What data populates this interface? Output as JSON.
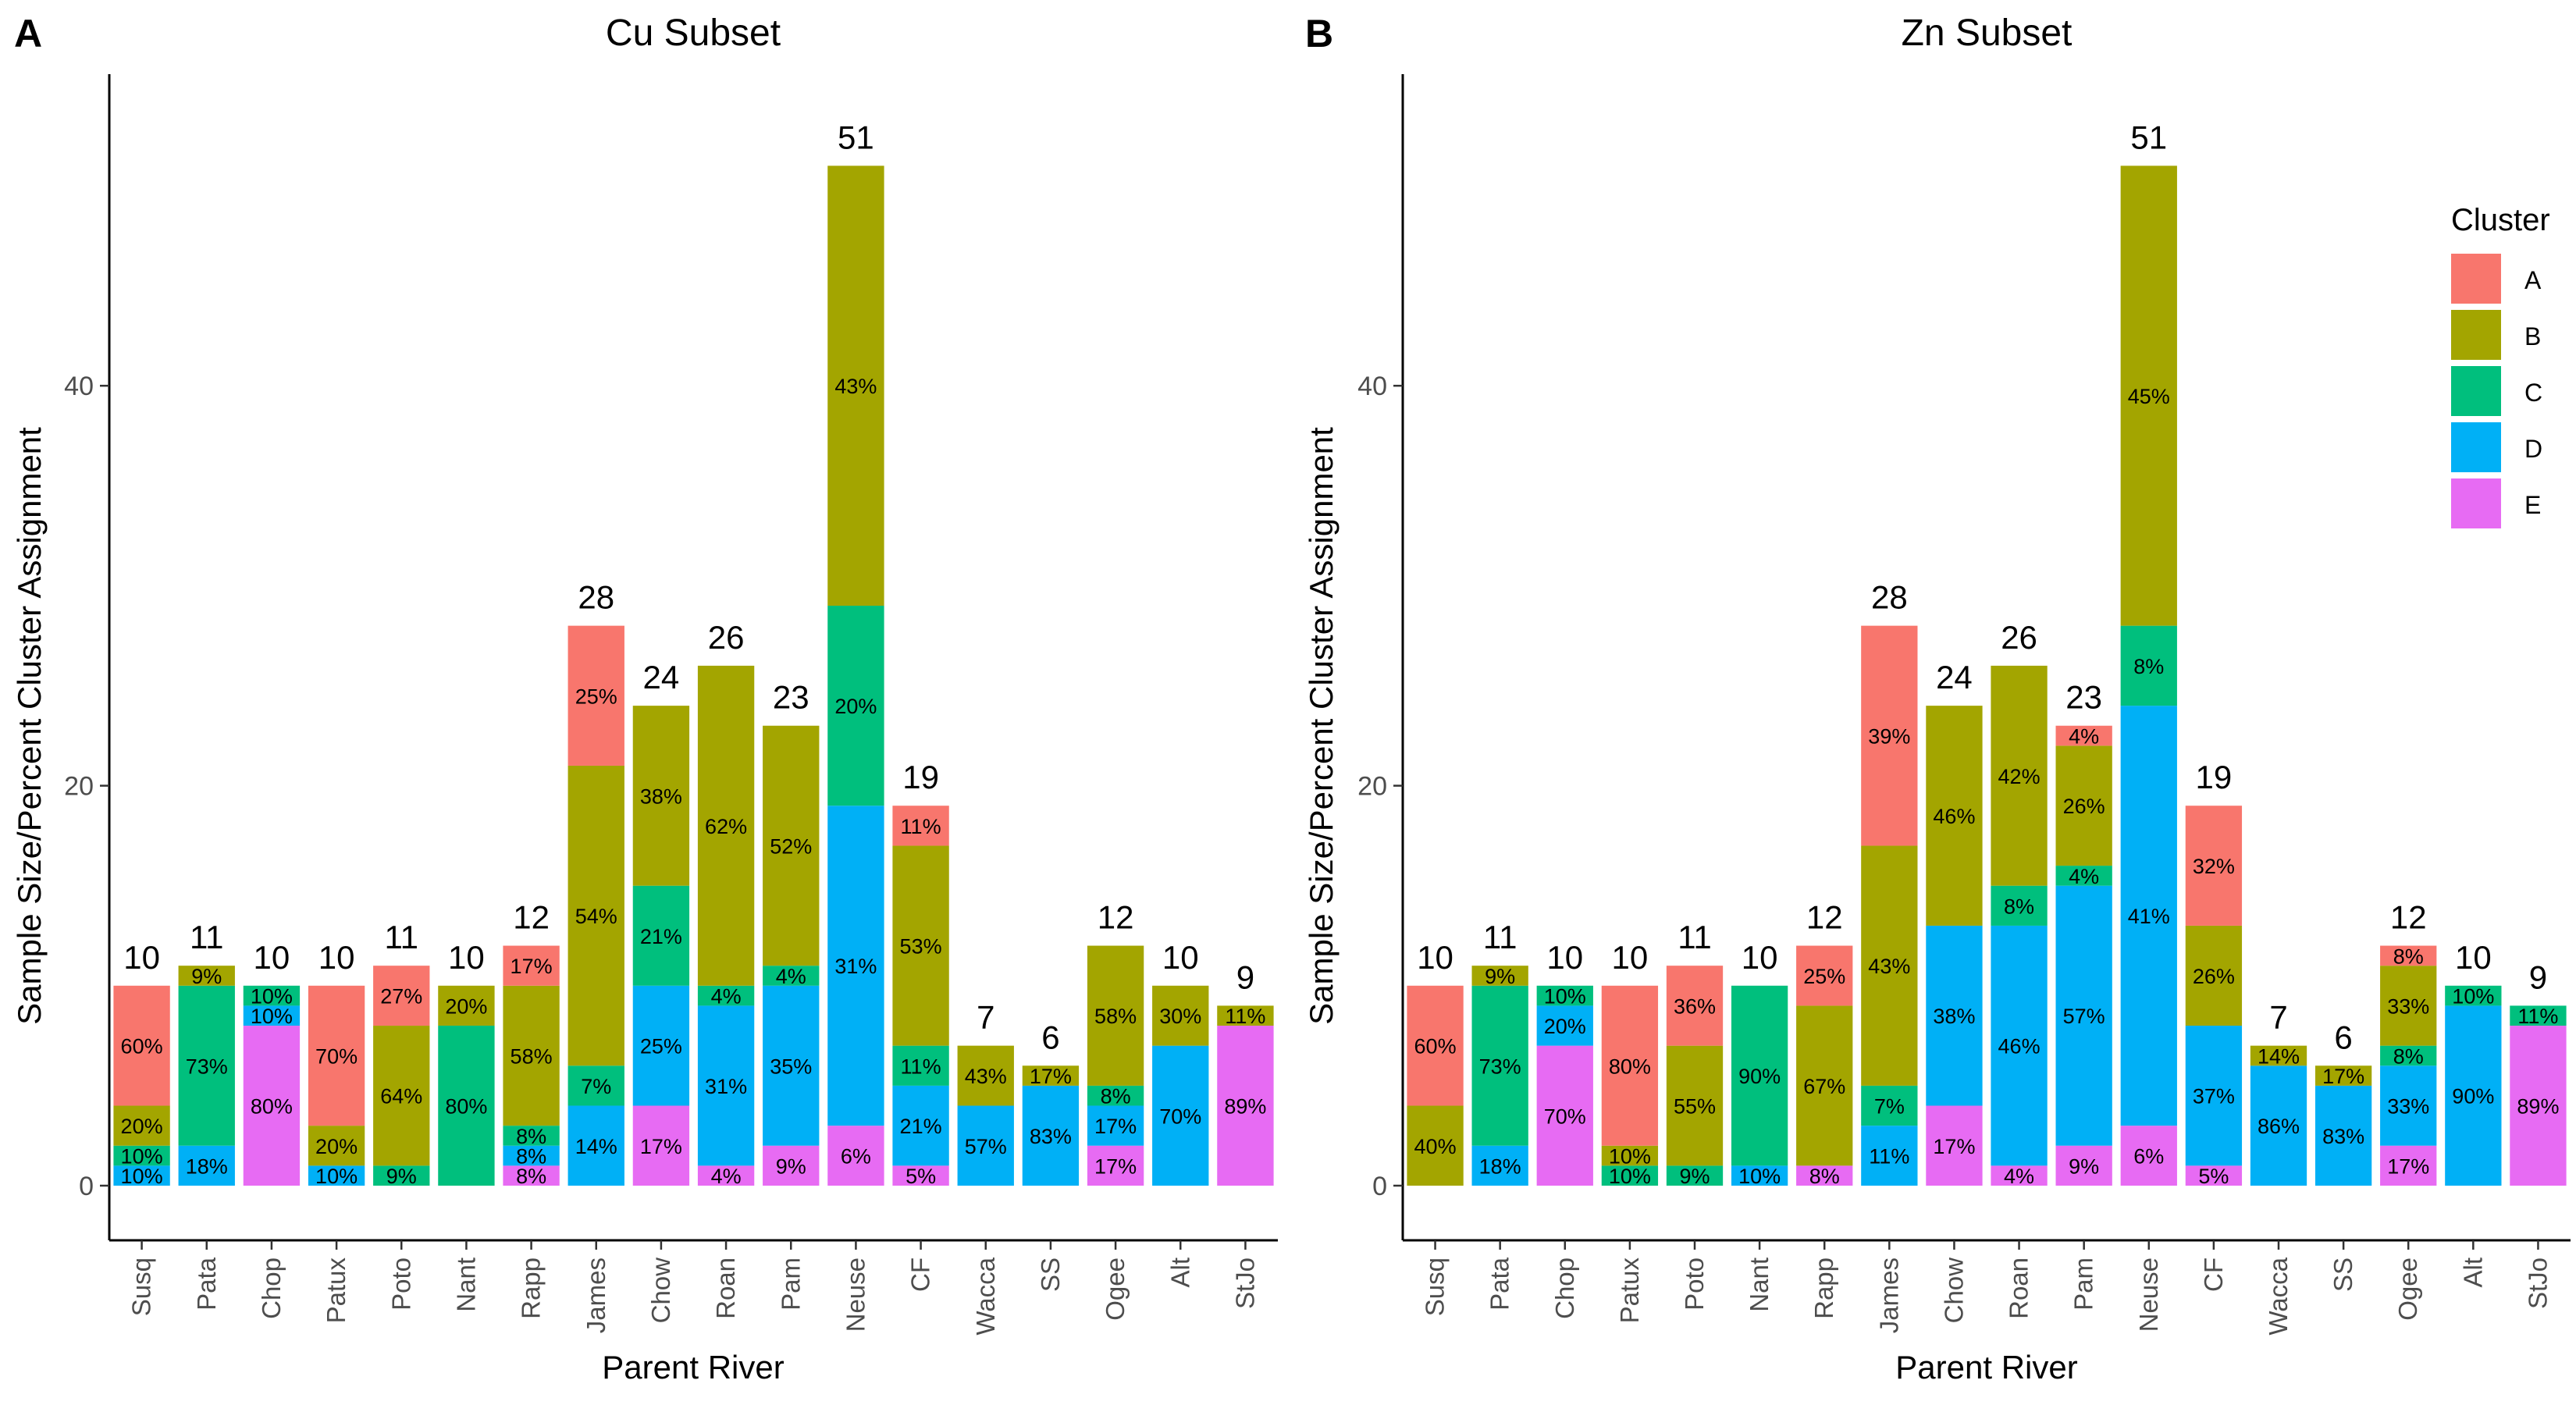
{
  "legend": {
    "title": "Cluster",
    "items": [
      {
        "label": "A",
        "color": "#F8766D"
      },
      {
        "label": "B",
        "color": "#A3A500"
      },
      {
        "label": "C",
        "color": "#00BF7D"
      },
      {
        "label": "D",
        "color": "#00B0F6"
      },
      {
        "label": "E",
        "color": "#E76BF3"
      }
    ]
  },
  "chart_data": [
    {
      "panel": "A",
      "type": "bar",
      "stacked": true,
      "title": "Cu Subset",
      "xlabel": "Parent River",
      "ylabel": "Sample Size/Percent Cluster Assignment",
      "ylim": [
        0,
        55
      ],
      "yticks": [
        0,
        20,
        40
      ],
      "categories": [
        "Susq",
        "Pata",
        "Chop",
        "Patux",
        "Poto",
        "Nant",
        "Rapp",
        "James",
        "Chow",
        "Roan",
        "Pam",
        "Neuse",
        "CF",
        "Wacca",
        "SS",
        "Ogee",
        "Alt",
        "StJo"
      ],
      "totals": [
        10,
        11,
        10,
        10,
        11,
        10,
        12,
        28,
        24,
        26,
        23,
        51,
        19,
        7,
        6,
        12,
        10,
        9
      ],
      "series": [
        {
          "name": "E",
          "values": [
            0,
            0,
            8,
            0,
            0,
            0,
            1,
            0,
            4,
            1,
            2,
            3,
            1,
            0,
            0,
            2,
            0,
            8
          ],
          "labels": [
            "",
            "",
            "80%",
            "",
            "",
            "",
            "8%",
            "",
            "17%",
            "4%",
            "9%",
            "6%",
            "5%",
            "",
            "",
            "17%",
            "",
            "89%"
          ]
        },
        {
          "name": "D",
          "values": [
            1,
            2,
            1,
            1,
            0,
            0,
            1,
            4,
            6,
            8,
            8,
            16,
            4,
            4,
            5,
            2,
            7,
            0
          ],
          "labels": [
            "10%",
            "18%",
            "10%",
            "10%",
            "",
            "",
            "8%",
            "14%",
            "25%",
            "31%",
            "35%",
            "31%",
            "21%",
            "57%",
            "83%",
            "17%",
            "70%",
            ""
          ]
        },
        {
          "name": "C",
          "values": [
            1,
            8,
            1,
            0,
            1,
            8,
            1,
            2,
            5,
            1,
            1,
            10,
            2,
            0,
            0,
            1,
            0,
            0
          ],
          "labels": [
            "10%",
            "73%",
            "10%",
            "",
            "9%",
            "80%",
            "8%",
            "7%",
            "21%",
            "4%",
            "4%",
            "20%",
            "11%",
            "",
            "",
            "8%",
            "",
            ""
          ]
        },
        {
          "name": "B",
          "values": [
            2,
            1,
            0,
            2,
            7,
            2,
            7,
            15,
            9,
            16,
            12,
            22,
            10,
            3,
            1,
            7,
            3,
            1
          ],
          "labels": [
            "20%",
            "9%",
            "",
            "20%",
            "64%",
            "20%",
            "58%",
            "54%",
            "38%",
            "62%",
            "52%",
            "43%",
            "53%",
            "43%",
            "17%",
            "58%",
            "30%",
            "11%"
          ]
        },
        {
          "name": "A",
          "values": [
            6,
            0,
            0,
            7,
            3,
            0,
            2,
            7,
            0,
            0,
            0,
            0,
            2,
            0,
            0,
            0,
            0,
            0
          ],
          "labels": [
            "60%",
            "",
            "",
            "70%",
            "27%",
            "",
            "17%",
            "25%",
            "",
            "",
            "",
            "",
            "11%",
            "",
            "",
            "",
            "",
            ""
          ]
        }
      ]
    },
    {
      "panel": "B",
      "type": "bar",
      "stacked": true,
      "title": "Zn Subset",
      "xlabel": "Parent River",
      "ylabel": "Sample Size/Percent Cluster Assignment",
      "ylim": [
        0,
        55
      ],
      "yticks": [
        0,
        20,
        40
      ],
      "categories": [
        "Susq",
        "Pata",
        "Chop",
        "Patux",
        "Poto",
        "Nant",
        "Rapp",
        "James",
        "Chow",
        "Roan",
        "Pam",
        "Neuse",
        "CF",
        "Wacca",
        "SS",
        "Ogee",
        "Alt",
        "StJo"
      ],
      "totals": [
        10,
        11,
        10,
        10,
        11,
        10,
        12,
        28,
        24,
        26,
        23,
        51,
        19,
        7,
        6,
        12,
        10,
        9
      ],
      "series": [
        {
          "name": "E",
          "values": [
            0,
            0,
            7,
            0,
            0,
            0,
            1,
            0,
            4,
            1,
            2,
            3,
            1,
            0,
            0,
            2,
            0,
            8
          ],
          "labels": [
            "",
            "",
            "70%",
            "",
            "",
            "",
            "8%",
            "",
            "17%",
            "4%",
            "9%",
            "6%",
            "5%",
            "",
            "",
            "17%",
            "",
            "89%"
          ]
        },
        {
          "name": "D",
          "values": [
            0,
            2,
            2,
            0,
            0,
            1,
            0,
            3,
            9,
            12,
            13,
            21,
            7,
            6,
            5,
            4,
            9,
            0
          ],
          "labels": [
            "",
            "18%",
            "20%",
            "",
            "",
            "10%",
            "",
            "11%",
            "38%",
            "46%",
            "57%",
            "41%",
            "37%",
            "86%",
            "83%",
            "33%",
            "90%",
            ""
          ]
        },
        {
          "name": "C",
          "values": [
            0,
            8,
            1,
            1,
            1,
            9,
            0,
            2,
            0,
            2,
            1,
            4,
            0,
            0,
            0,
            1,
            1,
            1
          ],
          "labels": [
            "",
            "73%",
            "10%",
            "10%",
            "9%",
            "90%",
            "",
            "7%",
            "",
            "8%",
            "4%",
            "8%",
            "",
            "",
            "",
            "8%",
            "10%",
            "11%"
          ]
        },
        {
          "name": "B",
          "values": [
            4,
            1,
            0,
            1,
            6,
            0,
            8,
            12,
            11,
            11,
            6,
            23,
            5,
            1,
            1,
            4,
            0,
            0
          ],
          "labels": [
            "40%",
            "9%",
            "",
            "10%",
            "55%",
            "",
            "67%",
            "43%",
            "46%",
            "42%",
            "26%",
            "45%",
            "26%",
            "14%",
            "17%",
            "33%",
            "",
            ""
          ]
        },
        {
          "name": "A",
          "values": [
            6,
            0,
            0,
            8,
            4,
            0,
            3,
            11,
            0,
            0,
            1,
            0,
            6,
            0,
            0,
            1,
            0,
            0
          ],
          "labels": [
            "60%",
            "",
            "",
            "80%",
            "36%",
            "",
            "25%",
            "39%",
            "",
            "",
            "4%",
            "",
            "32%",
            "",
            "",
            "8%",
            "",
            ""
          ]
        }
      ]
    }
  ]
}
